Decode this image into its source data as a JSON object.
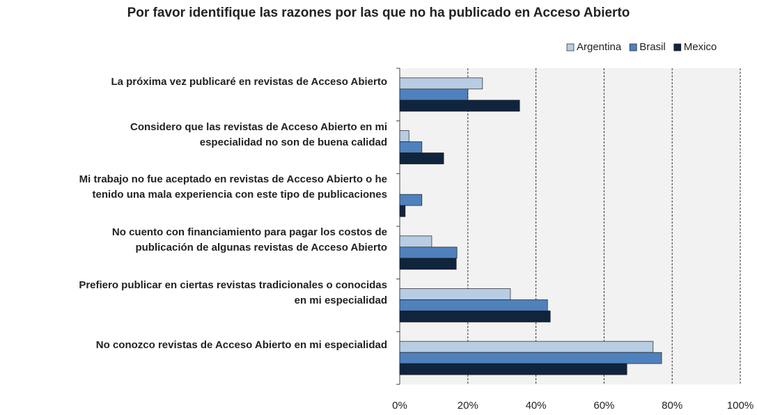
{
  "chart_data": {
    "type": "hbar",
    "title": "Por favor identifique las razones por las que no ha publicado en Acceso Abierto",
    "categories": [
      "La próxima vez publicaré en revistas de Acceso Abierto",
      "Considero que las revistas de Acceso Abierto en mi\nespecialidad no son de buena calidad",
      "Mi trabajo no fue aceptado en revistas de Acceso Abierto o he\ntenido una mala experiencia con este tipo de publicaciones",
      "No cuento con financiamiento para pagar los costos de\npublicación de algunas revistas de Acceso Abierto",
      "Prefiero publicar en ciertas revistas tradicionales o conocidas\nen mi especialidad",
      "No conozco revistas de Acceso Abierto en mi especialidad"
    ],
    "series": [
      {
        "name": "Argentina",
        "color": "#b8cce4",
        "values": [
          24.3,
          2.7,
          0,
          9.4,
          32.5,
          74.4
        ]
      },
      {
        "name": "Brasil",
        "color": "#4f81bd",
        "values": [
          20,
          6.5,
          6.5,
          16.8,
          43.4,
          76.9
        ]
      },
      {
        "name": "Mexico",
        "color": "#10243e",
        "values": [
          35.2,
          12.9,
          1.6,
          16.6,
          44.2,
          66.7
        ]
      }
    ],
    "xlim": [
      0,
      100
    ],
    "xticks": [
      {
        "value": 0,
        "label": "0%"
      },
      {
        "value": 20,
        "label": "20%"
      },
      {
        "value": 40,
        "label": "40%"
      },
      {
        "value": 60,
        "label": "60%"
      },
      {
        "value": 80,
        "label": "80%"
      },
      {
        "value": 100,
        "label": "100%"
      }
    ],
    "grid": true,
    "legend": "top-right"
  }
}
